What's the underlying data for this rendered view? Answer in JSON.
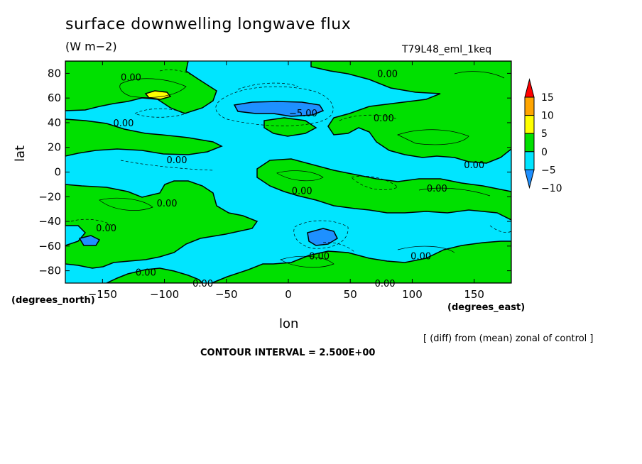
{
  "chart_data": {
    "type": "heatmap",
    "title": "surface downwelling longwave flux",
    "units": "(W m−2)",
    "experiment": "T79L48_eml_1keq",
    "xlabel": "lon",
    "ylabel": "lat",
    "x_units": "(degrees_east)",
    "y_units": "(degrees_north)",
    "xlim": [
      -180,
      180
    ],
    "ylim": [
      -90,
      90
    ],
    "x_ticks": [
      -150,
      -100,
      -50,
      0,
      50,
      100,
      150
    ],
    "y_ticks": [
      80,
      60,
      40,
      20,
      0,
      -20,
      -40,
      -60,
      -80
    ],
    "colorbar": {
      "levels": [
        -10,
        -5,
        0,
        5,
        10,
        15
      ],
      "colors": [
        "#1e90ff",
        "#00e5ff",
        "#00e000",
        "#ffff00",
        "#ffa500",
        "#ff0000"
      ]
    },
    "contour_labels": [
      {
        "text": "0.00",
        "lon": -127,
        "lat": 77
      },
      {
        "text": "0.00",
        "lon": 80,
        "lat": 80
      },
      {
        "text": "-5.00",
        "lon": 12,
        "lat": 48
      },
      {
        "text": "0.00",
        "lon": 77,
        "lat": 44
      },
      {
        "text": "0.00",
        "lon": -133,
        "lat": 40
      },
      {
        "text": "0.00",
        "lon": -90,
        "lat": 10
      },
      {
        "text": "0.00",
        "lon": 150,
        "lat": 6
      },
      {
        "text": "0.00",
        "lon": 11,
        "lat": -15
      },
      {
        "text": "0.00",
        "lon": 120,
        "lat": -13
      },
      {
        "text": "0.00",
        "lon": -98,
        "lat": -25
      },
      {
        "text": "0.00",
        "lon": -147,
        "lat": -45
      },
      {
        "text": "0.00",
        "lon": 25,
        "lat": -68
      },
      {
        "text": "0.00",
        "lon": 107,
        "lat": -68
      },
      {
        "text": "0.00",
        "lon": -115,
        "lat": -81
      },
      {
        "text": "0.00",
        "lon": -69,
        "lat": -90
      },
      {
        "text": "0.00",
        "lon": 78,
        "lat": -90
      }
    ]
  },
  "annotation": "[ (diff) from (mean) zonal of control ]",
  "contour_interval": "CONTOUR INTERVAL = 2.500E+00"
}
